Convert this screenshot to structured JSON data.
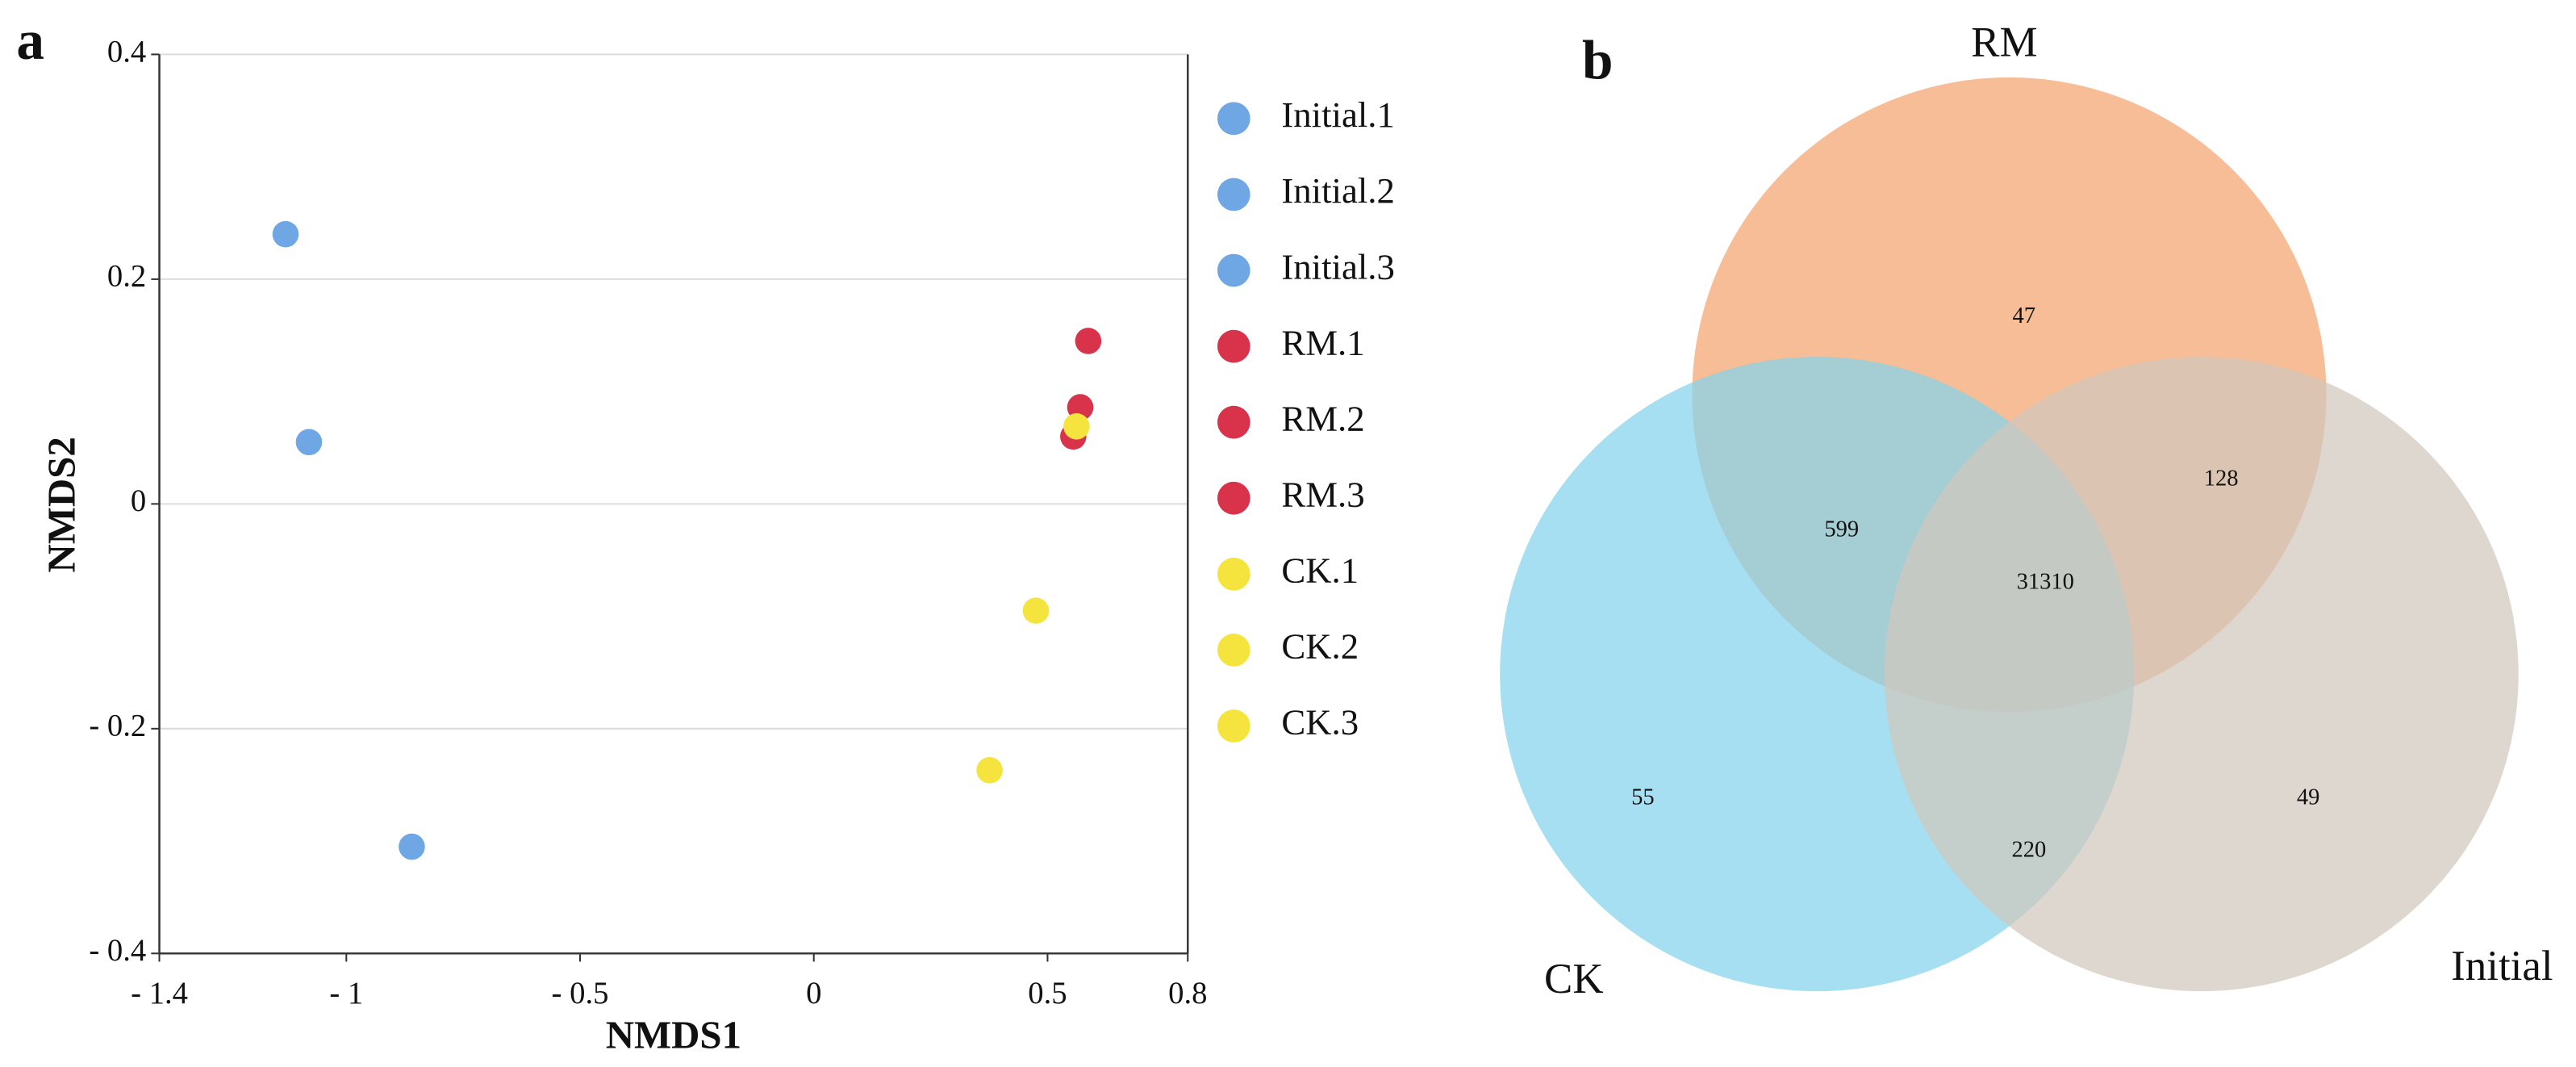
{
  "chart_data": [
    {
      "type": "scatter",
      "panel_label": "a",
      "x_label": "NMDS1",
      "y_label": "NMDS2",
      "xlim": [
        -1.4,
        0.8
      ],
      "ylim": [
        -0.4,
        0.4
      ],
      "xticks": [
        {
          "value": -1.4,
          "label": "- 1.4"
        },
        {
          "value": -1,
          "label": "- 1"
        },
        {
          "value": -0.5,
          "label": "- 0.5"
        },
        0,
        0.5,
        0.8
      ],
      "yticks": [
        {
          "value": -0.4,
          "label": "- 0.4"
        },
        {
          "value": -0.2,
          "label": "- 0.2"
        },
        0,
        0.2,
        0.4
      ],
      "grid": true,
      "series": [
        {
          "name": "Initial.1",
          "color": "#6fa7e4",
          "x": [
            -1.13
          ],
          "y": [
            0.24
          ]
        },
        {
          "name": "Initial.2",
          "color": "#6fa7e4",
          "x": [
            -1.08
          ],
          "y": [
            0.055
          ]
        },
        {
          "name": "Initial.3",
          "color": "#6fa7e4",
          "x": [
            -0.86
          ],
          "y": [
            -0.305
          ]
        },
        {
          "name": "RM.1",
          "color": "#d8334a",
          "x": [
            0.587
          ],
          "y": [
            0.145
          ]
        },
        {
          "name": "RM.2",
          "color": "#d8334a",
          "x": [
            0.57
          ],
          "y": [
            0.086
          ]
        },
        {
          "name": "RM.3",
          "color": "#d8334a",
          "x": [
            0.555
          ],
          "y": [
            0.06
          ]
        },
        {
          "name": "CK.1",
          "color": "#f6e43e",
          "x": [
            0.475
          ],
          "y": [
            -0.095
          ]
        },
        {
          "name": "CK.2",
          "color": "#f6e43e",
          "x": [
            0.376
          ],
          "y": [
            -0.237
          ]
        },
        {
          "name": "CK.3",
          "color": "#f6e43e",
          "x": [
            0.562
          ],
          "y": [
            0.069
          ]
        }
      ]
    },
    {
      "type": "venn",
      "panel_label": "b",
      "sets": [
        {
          "name": "RM",
          "color": "#f4a36e"
        },
        {
          "name": "CK",
          "color": "#84d3ec"
        },
        {
          "name": "Initial",
          "color": "#d0c8bd"
        }
      ],
      "values": [
        47,
        599,
        128,
        31310,
        55,
        220,
        49
      ]
    }
  ]
}
